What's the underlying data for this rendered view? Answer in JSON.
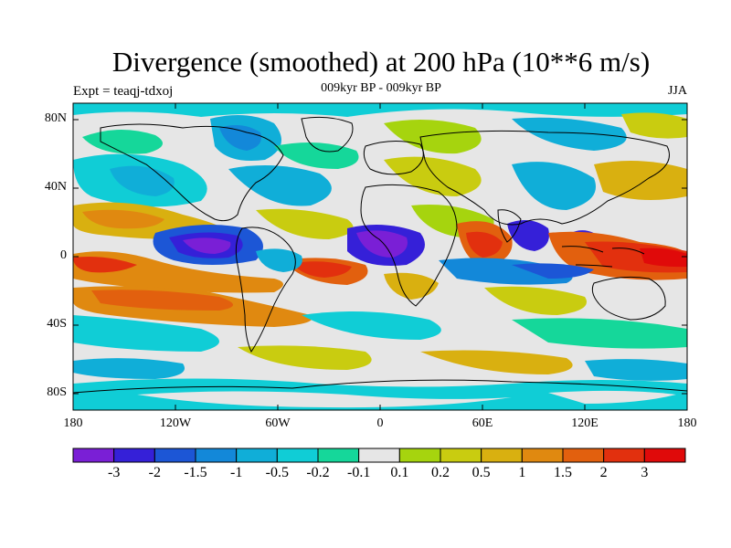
{
  "title": "Divergence (smoothed) at 200 hPa (10**6 m/s)",
  "experiment": "Expt = teaqj-tdxoj",
  "period": "009kyr BP - 009kyr BP",
  "season": "JJA",
  "lat_labels": [
    "80N",
    "40N",
    "0",
    "40S",
    "80S"
  ],
  "lon_labels": [
    "180",
    "120W",
    "60W",
    "0",
    "60E",
    "120E",
    "180"
  ],
  "colorbar": {
    "labels": [
      "-3",
      "-2",
      "-1.5",
      "-1",
      "-0.5",
      "-0.2",
      "-0.1",
      "0.1",
      "0.2",
      "0.5",
      "1",
      "1.5",
      "2",
      "3"
    ],
    "colors": [
      "#7a1fd6",
      "#3520d8",
      "#1c56d6",
      "#1388d9",
      "#10aed8",
      "#10cdd6",
      "#15d79a",
      "#e6e6e6",
      "#a6d40e",
      "#c9cc10",
      "#d9b010",
      "#e08910",
      "#e2600e",
      "#e2300e",
      "#e00a0a"
    ]
  }
}
